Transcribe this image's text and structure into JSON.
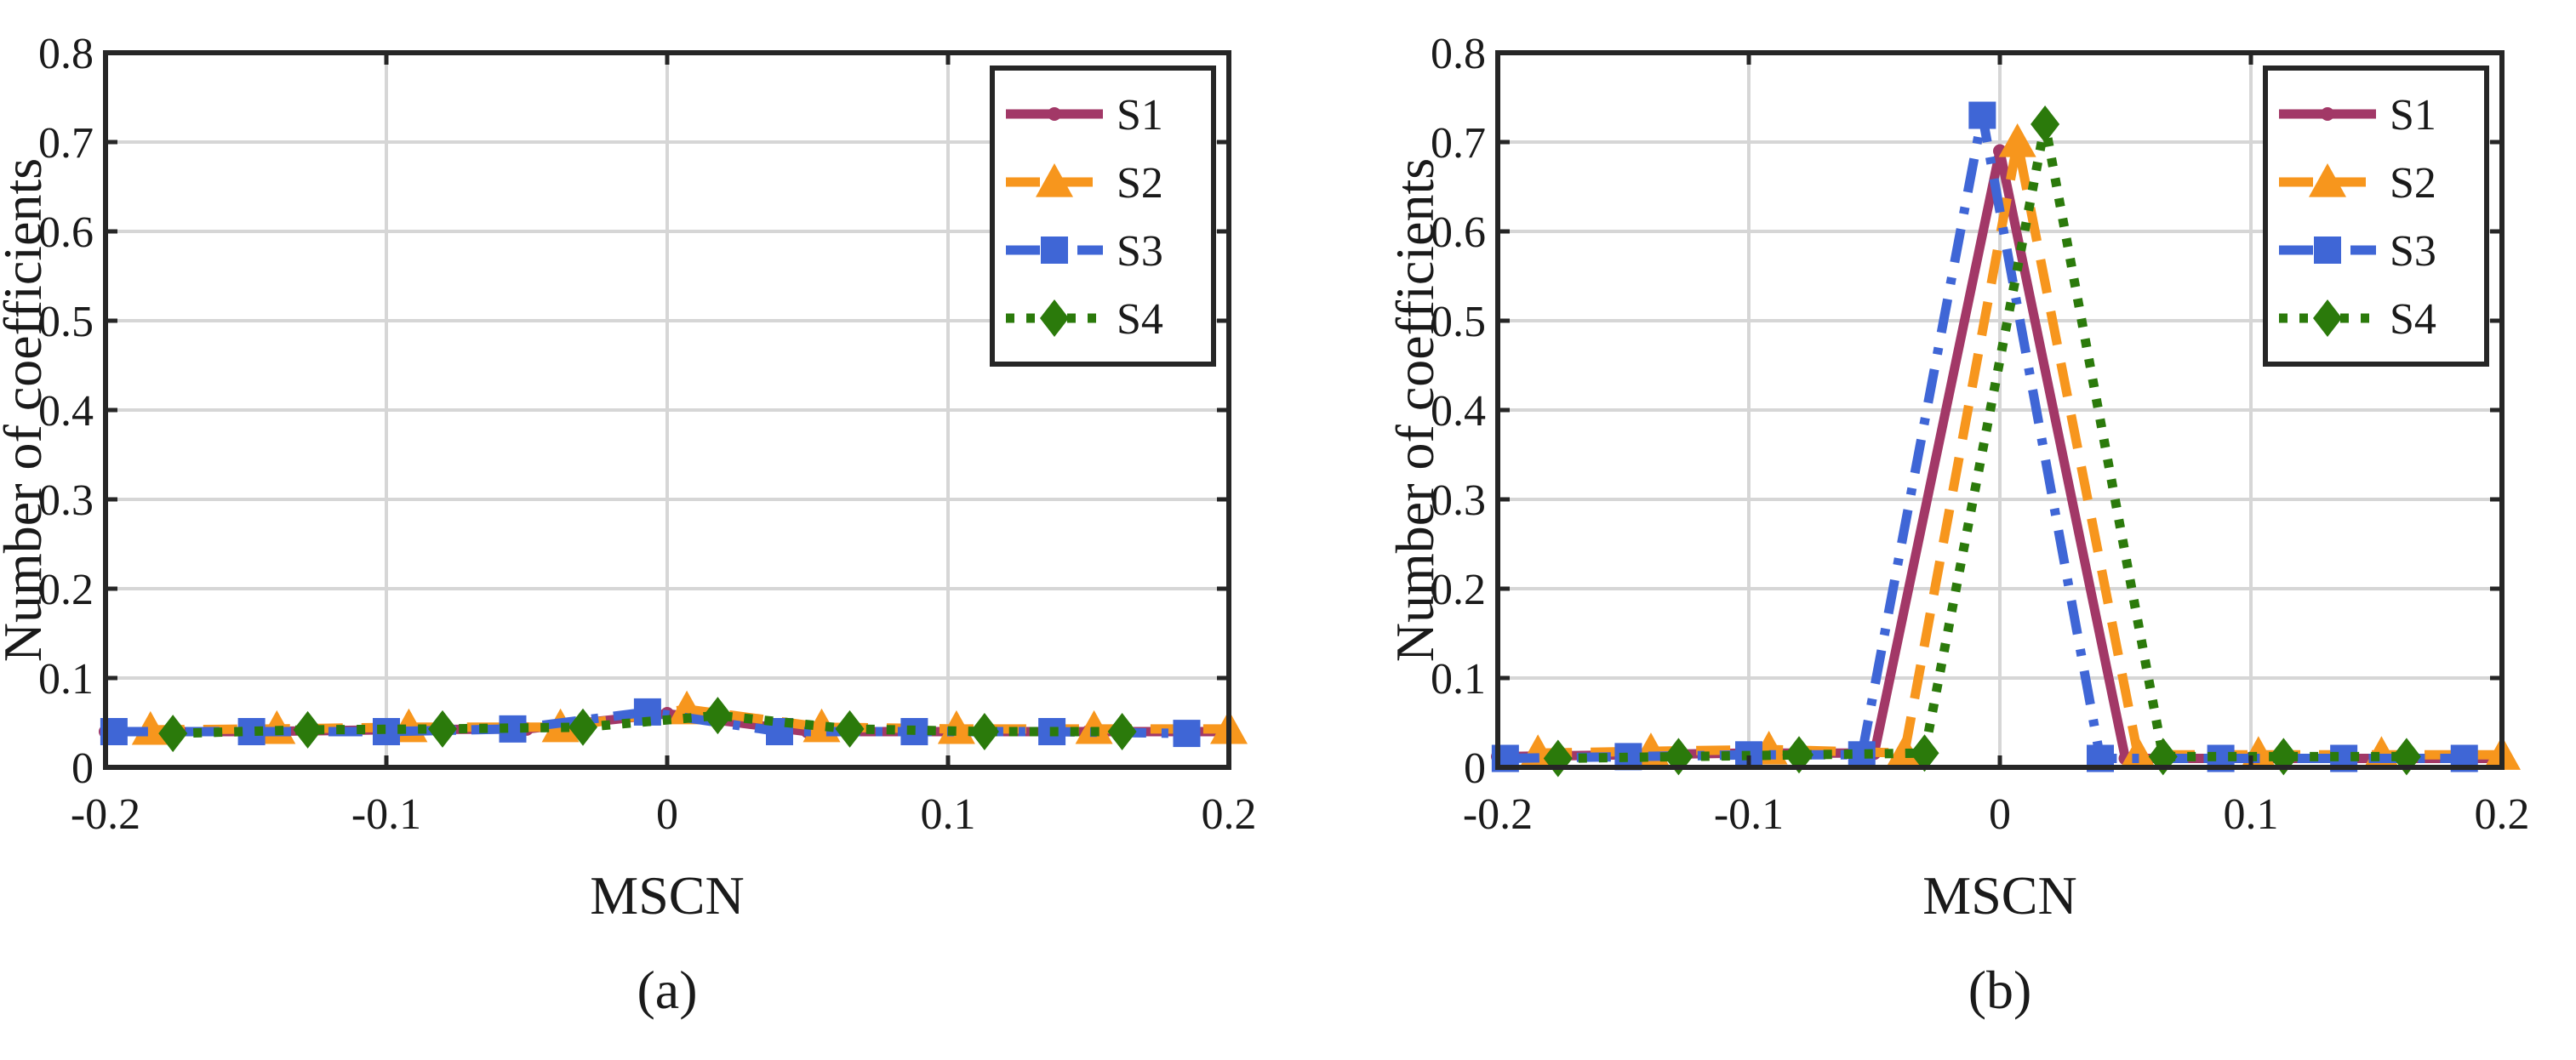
{
  "figure": {
    "panels": [
      {
        "caption": "(a)"
      },
      {
        "caption": "(b)"
      }
    ]
  },
  "series_styles": [
    {
      "name": "S1",
      "color": "#a23867",
      "dash": "solid",
      "marker": "dot"
    },
    {
      "name": "S2",
      "color": "#f7961d",
      "dash": "dash",
      "marker": "triangle"
    },
    {
      "name": "S3",
      "color": "#3f66d6",
      "dash": "dashdot",
      "marker": "square"
    },
    {
      "name": "S4",
      "color": "#2b7a0b",
      "dash": "dot",
      "marker": "diamond"
    }
  ],
  "chart_data": [
    {
      "type": "line",
      "caption": "(a)",
      "xlabel": "MSCN",
      "ylabel": "Number of coefficients",
      "xlim": [
        -0.2,
        0.2
      ],
      "ylim": [
        0,
        0.8
      ],
      "xticks": [
        "-0.2",
        "-0.1",
        "0",
        "0.1",
        "0.2"
      ],
      "yticks": [
        "0",
        "0.1",
        "0.2",
        "0.3",
        "0.4",
        "0.5",
        "0.6",
        "0.7",
        "0.8"
      ],
      "grid": true,
      "legend_position": "top-right",
      "series": [
        {
          "name": "S1",
          "x": [
            -0.2,
            -0.15,
            -0.1,
            -0.05,
            0.0,
            0.05,
            0.1,
            0.15,
            0.2
          ],
          "y": [
            0.04,
            0.04,
            0.042,
            0.043,
            0.06,
            0.04,
            0.04,
            0.04,
            0.04
          ]
        },
        {
          "name": "S2",
          "x": [
            -0.184,
            -0.139,
            -0.092,
            -0.038,
            0.007,
            0.055,
            0.103,
            0.152,
            0.2
          ],
          "y": [
            0.042,
            0.043,
            0.045,
            0.045,
            0.065,
            0.045,
            0.043,
            0.043,
            0.043
          ]
        },
        {
          "name": "S3",
          "x": [
            -0.197,
            -0.148,
            -0.1,
            -0.055,
            -0.007,
            0.04,
            0.088,
            0.137,
            0.185
          ],
          "y": [
            0.04,
            0.04,
            0.04,
            0.043,
            0.062,
            0.04,
            0.04,
            0.04,
            0.038
          ]
        },
        {
          "name": "S4",
          "x": [
            -0.176,
            -0.128,
            -0.08,
            -0.03,
            0.018,
            0.065,
            0.113,
            0.162
          ],
          "y": [
            0.038,
            0.042,
            0.043,
            0.045,
            0.058,
            0.043,
            0.04,
            0.04
          ]
        }
      ]
    },
    {
      "type": "line",
      "caption": "(b)",
      "xlabel": "MSCN",
      "ylabel": "Number of coefficients",
      "xlim": [
        -0.2,
        0.2
      ],
      "ylim": [
        0,
        0.8
      ],
      "xticks": [
        "-0.2",
        "-0.1",
        "0",
        "0.1",
        "0.2"
      ],
      "yticks": [
        "0",
        "0.1",
        "0.2",
        "0.3",
        "0.4",
        "0.5",
        "0.6",
        "0.7",
        "0.8"
      ],
      "grid": true,
      "legend_position": "top-right",
      "series": [
        {
          "name": "S1",
          "x": [
            -0.2,
            -0.15,
            -0.1,
            -0.05,
            0.0,
            0.05,
            0.1,
            0.15,
            0.2
          ],
          "y": [
            0.012,
            0.014,
            0.016,
            0.016,
            0.69,
            0.01,
            0.01,
            0.01,
            0.01
          ]
        },
        {
          "name": "S2",
          "x": [
            -0.184,
            -0.139,
            -0.092,
            -0.038,
            0.007,
            0.055,
            0.103,
            0.152,
            0.2
          ],
          "y": [
            0.016,
            0.018,
            0.02,
            0.016,
            0.7,
            0.014,
            0.014,
            0.014,
            0.014
          ]
        },
        {
          "name": "S3",
          "x": [
            -0.197,
            -0.148,
            -0.1,
            -0.055,
            -0.007,
            0.04,
            0.088,
            0.137,
            0.185
          ],
          "y": [
            0.01,
            0.012,
            0.014,
            0.014,
            0.73,
            0.01,
            0.01,
            0.01,
            0.01
          ]
        },
        {
          "name": "S4",
          "x": [
            -0.176,
            -0.128,
            -0.08,
            -0.03,
            0.018,
            0.065,
            0.113,
            0.162
          ],
          "y": [
            0.01,
            0.012,
            0.014,
            0.016,
            0.72,
            0.012,
            0.012,
            0.012
          ]
        }
      ]
    }
  ]
}
